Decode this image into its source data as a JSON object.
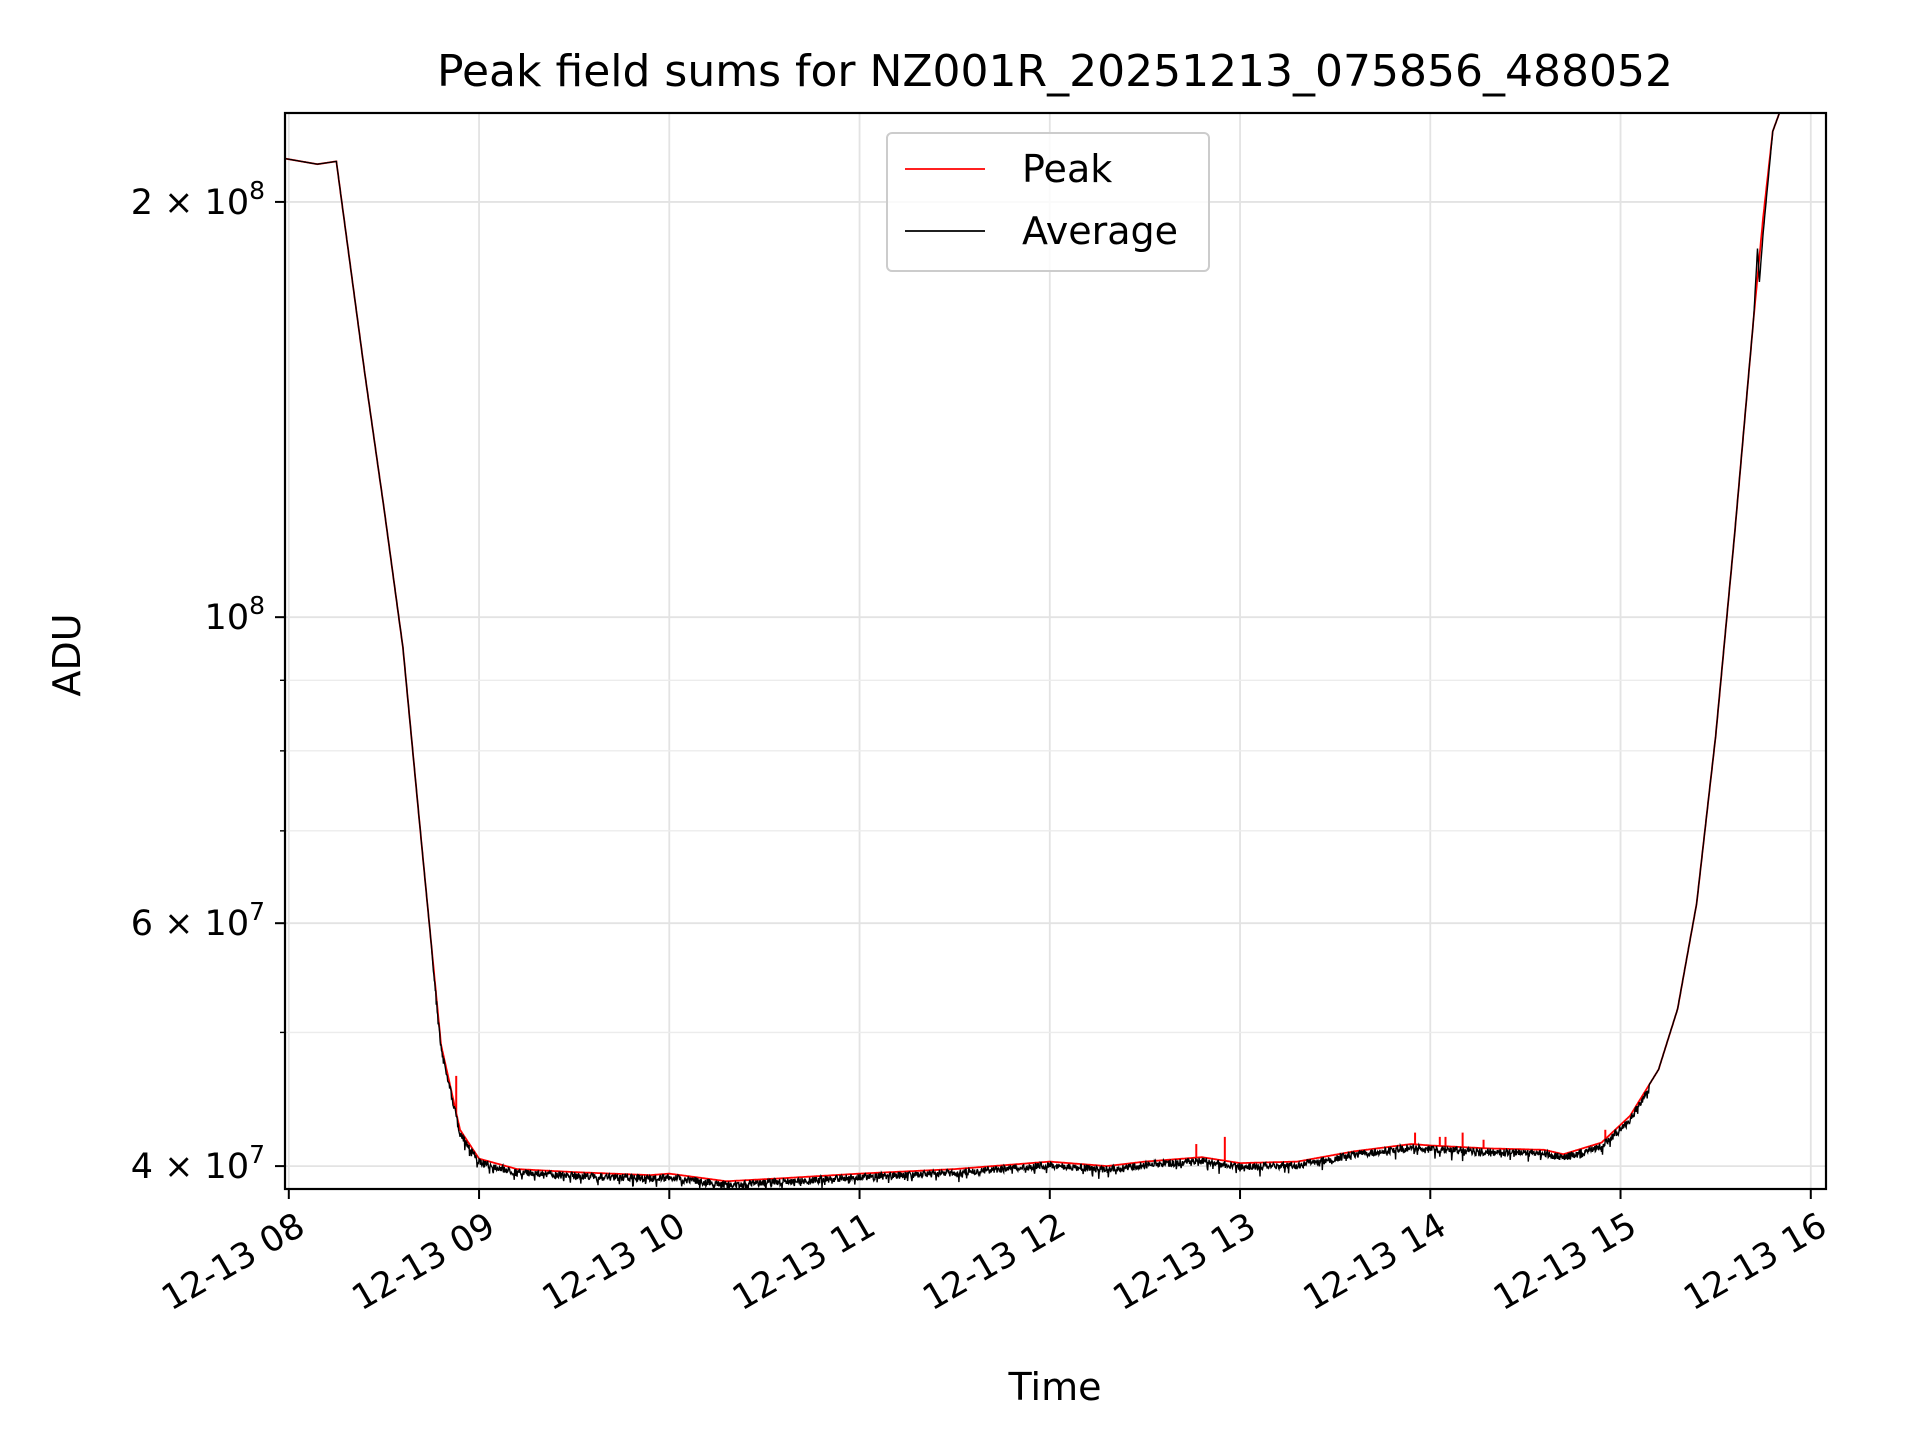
{
  "chart_data": {
    "type": "line",
    "title": "Peak field sums for NZ001R_20251213_075856_488052",
    "xlabel": "Time",
    "ylabel": "ADU",
    "yscale": "log",
    "xlim": [
      7.98,
      16.08
    ],
    "ylim": [
      38500000,
      232000000
    ],
    "grid": true,
    "legend_position": "upper center",
    "x_ticks": [
      {
        "value": 8,
        "label": "12-13 08"
      },
      {
        "value": 9,
        "label": "12-13 09"
      },
      {
        "value": 10,
        "label": "12-13 10"
      },
      {
        "value": 11,
        "label": "12-13 11"
      },
      {
        "value": 12,
        "label": "12-13 12"
      },
      {
        "value": 13,
        "label": "12-13 13"
      },
      {
        "value": 14,
        "label": "12-13 14"
      },
      {
        "value": 15,
        "label": "12-13 15"
      },
      {
        "value": 16,
        "label": "12-13 16"
      }
    ],
    "y_major_ticks": [
      {
        "value": 40000000,
        "base": "4 × 10",
        "exp": "7"
      },
      {
        "value": 60000000,
        "base": "6 × 10",
        "exp": "7"
      },
      {
        "value": 100000000,
        "base": "10",
        "exp": "8"
      },
      {
        "value": 200000000,
        "base": "2 × 10",
        "exp": "8"
      }
    ],
    "y_minor_ticks": [
      50000000,
      70000000,
      80000000,
      90000000
    ],
    "x_unit": "hours since 12-13 00:00 (UTC)",
    "series": [
      {
        "name": "Peak",
        "color": "#ff0000",
        "keyframes": [
          [
            7.98,
            215000000
          ],
          [
            8.15,
            213000000
          ],
          [
            8.25,
            214000000
          ],
          [
            8.3,
            190000000
          ],
          [
            8.4,
            150000000
          ],
          [
            8.5,
            120000000
          ],
          [
            8.6,
            95000000
          ],
          [
            8.7,
            68000000
          ],
          [
            8.8,
            49000000
          ],
          [
            8.9,
            42500000
          ],
          [
            9.0,
            40500000
          ],
          [
            9.2,
            39800000
          ],
          [
            9.5,
            39600000
          ],
          [
            9.9,
            39400000
          ],
          [
            10.0,
            39500000
          ],
          [
            10.3,
            39000000
          ],
          [
            10.6,
            39200000
          ],
          [
            11.0,
            39500000
          ],
          [
            11.5,
            39800000
          ],
          [
            12.0,
            40300000
          ],
          [
            12.3,
            40000000
          ],
          [
            12.5,
            40300000
          ],
          [
            12.8,
            40600000
          ],
          [
            13.0,
            40200000
          ],
          [
            13.3,
            40300000
          ],
          [
            13.6,
            41000000
          ],
          [
            13.9,
            41500000
          ],
          [
            14.0,
            41400000
          ],
          [
            14.3,
            41200000
          ],
          [
            14.6,
            41100000
          ],
          [
            14.7,
            40800000
          ],
          [
            14.8,
            41200000
          ],
          [
            14.9,
            41600000
          ],
          [
            15.05,
            43500000
          ],
          [
            15.2,
            47000000
          ],
          [
            15.3,
            52000000
          ],
          [
            15.4,
            62000000
          ],
          [
            15.5,
            82000000
          ],
          [
            15.6,
            115000000
          ],
          [
            15.7,
            165000000
          ],
          [
            15.75,
            195000000
          ],
          [
            15.8,
            225000000
          ],
          [
            15.85,
            235000000
          ],
          [
            16.08,
            235000000
          ]
        ],
        "spikes": [
          [
            8.88,
            46500000
          ],
          [
            12.77,
            41500000
          ],
          [
            12.92,
            42000000
          ],
          [
            13.92,
            42300000
          ],
          [
            14.05,
            42000000
          ],
          [
            14.08,
            42000000
          ],
          [
            14.17,
            42300000
          ],
          [
            14.28,
            41800000
          ],
          [
            14.92,
            42500000
          ]
        ]
      },
      {
        "name": "Average",
        "color": "#000000",
        "keyframes": [
          [
            7.98,
            215000000
          ],
          [
            8.15,
            213000000
          ],
          [
            8.25,
            214000000
          ],
          [
            8.3,
            190000000
          ],
          [
            8.4,
            150000000
          ],
          [
            8.5,
            120000000
          ],
          [
            8.6,
            95000000
          ],
          [
            8.7,
            68000000
          ],
          [
            8.8,
            49000000
          ],
          [
            8.9,
            42500000
          ],
          [
            9.0,
            40500000
          ],
          [
            9.2,
            39800000
          ],
          [
            9.5,
            39600000
          ],
          [
            9.9,
            39400000
          ],
          [
            10.0,
            39500000
          ],
          [
            10.3,
            39000000
          ],
          [
            10.6,
            39200000
          ],
          [
            11.0,
            39500000
          ],
          [
            11.5,
            39800000
          ],
          [
            12.0,
            40300000
          ],
          [
            12.3,
            40000000
          ],
          [
            12.5,
            40300000
          ],
          [
            12.8,
            40600000
          ],
          [
            13.0,
            40200000
          ],
          [
            13.3,
            40300000
          ],
          [
            13.6,
            41000000
          ],
          [
            13.9,
            41500000
          ],
          [
            14.0,
            41400000
          ],
          [
            14.3,
            41200000
          ],
          [
            14.6,
            41100000
          ],
          [
            14.7,
            40800000
          ],
          [
            14.8,
            41200000
          ],
          [
            14.9,
            41600000
          ],
          [
            15.05,
            43500000
          ],
          [
            15.2,
            47000000
          ],
          [
            15.3,
            52000000
          ],
          [
            15.4,
            62000000
          ],
          [
            15.5,
            82000000
          ],
          [
            15.6,
            115000000
          ],
          [
            15.7,
            165000000
          ],
          [
            15.72,
            185000000
          ],
          [
            15.73,
            175000000
          ],
          [
            15.75,
            190000000
          ],
          [
            15.8,
            225000000
          ],
          [
            15.85,
            235000000
          ],
          [
            16.08,
            235000000
          ]
        ],
        "noise_amplitude": 0.012
      }
    ]
  }
}
